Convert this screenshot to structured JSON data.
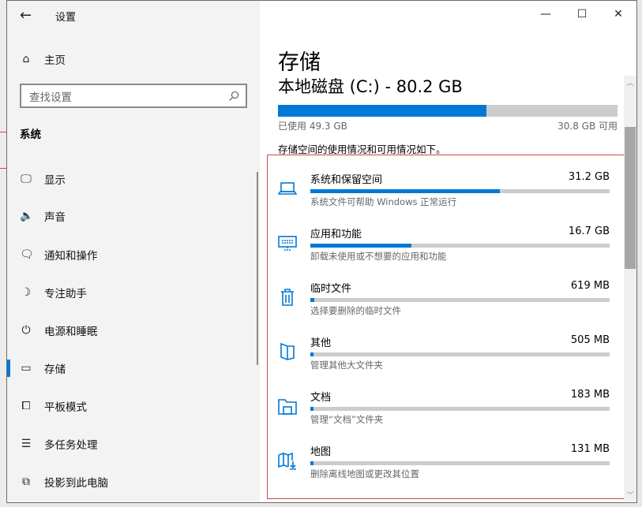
{
  "window": {
    "app_title": "设置",
    "minimize": "—",
    "maximize": "☐",
    "close": "✕"
  },
  "sidebar": {
    "home": "主页",
    "search_placeholder": "查找设置",
    "section": "系统",
    "items": [
      {
        "label": "显示",
        "icon": "monitor-icon"
      },
      {
        "label": "声音",
        "icon": "speaker-icon"
      },
      {
        "label": "通知和操作",
        "icon": "notification-icon"
      },
      {
        "label": "专注助手",
        "icon": "moon-icon"
      },
      {
        "label": "电源和睡眠",
        "icon": "power-icon"
      },
      {
        "label": "存储",
        "icon": "storage-icon",
        "selected": true
      },
      {
        "label": "平板模式",
        "icon": "tablet-icon"
      },
      {
        "label": "多任务处理",
        "icon": "multitask-icon"
      },
      {
        "label": "投影到此电脑",
        "icon": "project-icon"
      }
    ]
  },
  "main": {
    "title": "存储",
    "disk": "本地磁盘 (C:) - 80.2 GB",
    "used_fraction": 0.615,
    "used_label": "已使用 49.3 GB",
    "free_label": "30.8 GB 可用",
    "description": "存储空间的使用情况和可用情况如下。",
    "accent": "#0078d7",
    "categories": [
      {
        "name": "系统和保留空间",
        "size": "31.2 GB",
        "sub": "系统文件可帮助 Windows 正常运行",
        "fraction": 0.633,
        "icon": "laptop-icon"
      },
      {
        "name": "应用和功能",
        "size": "16.7 GB",
        "sub": "卸载未使用或不想要的应用和功能",
        "fraction": 0.338,
        "icon": "keyboard-monitor-icon"
      },
      {
        "name": "临时文件",
        "size": "619 MB",
        "sub": "选择要删除的临时文件",
        "fraction": 0.013,
        "icon": "trash-icon"
      },
      {
        "name": "其他",
        "size": "505 MB",
        "sub": "管理其他大文件夹",
        "fraction": 0.011,
        "icon": "other-folder-icon"
      },
      {
        "name": "文档",
        "size": "183 MB",
        "sub": "管理“文档”文件夹",
        "fraction": 0.004,
        "icon": "documents-folder-icon"
      },
      {
        "name": "地图",
        "size": "131 MB",
        "sub": "删除离线地图或更改其位置",
        "fraction": 0.003,
        "icon": "map-icon"
      }
    ]
  }
}
